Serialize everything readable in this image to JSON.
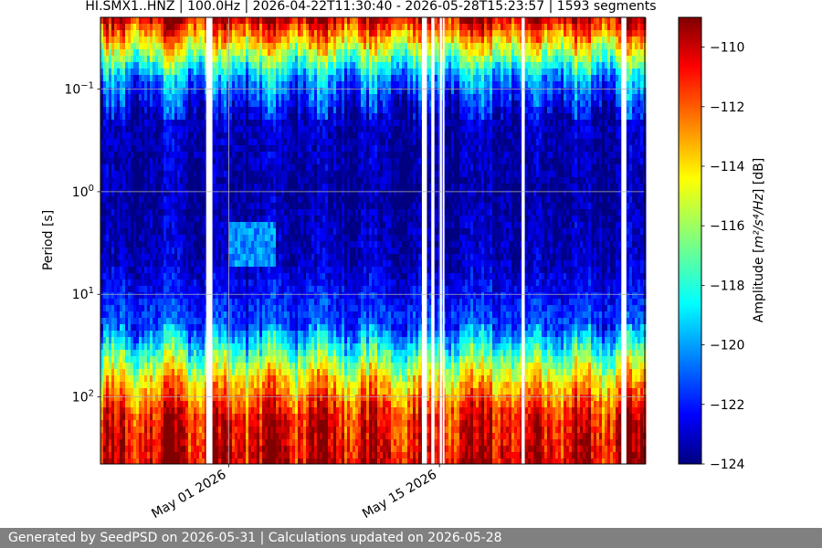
{
  "chart_data": {
    "type": "heatmap",
    "title": "HI.SMX1..HNZ | 100.0Hz | 2026-04-22T11:30:40 - 2026-05-28T15:23:57 | 1593 segments",
    "ylabel": "Period [s]",
    "y_scale": "log",
    "y_axis_inverted": true,
    "ylim": [
      0.02,
      450
    ],
    "x_range": [
      "2026-04-22T11:30:40",
      "2026-05-28T15:23:57"
    ],
    "x_ticks": [
      {
        "label": "May 01 2026",
        "date": "2026-05-01"
      },
      {
        "label": "May 15 2026",
        "date": "2026-05-15"
      }
    ],
    "y_ticks": [
      {
        "base": "10",
        "exp": "−1",
        "value": 0.1
      },
      {
        "base": "10",
        "exp": "0",
        "value": 1
      },
      {
        "base": "10",
        "exp": "1",
        "value": 10
      },
      {
        "base": "10",
        "exp": "2",
        "value": 100
      }
    ],
    "grid": true,
    "colormap": "jet",
    "colorbar": {
      "label_main": "Amplitude [",
      "label_math": "m²/s⁴/Hz",
      "label_unit": "] [dB]",
      "range": [
        -124,
        -109
      ],
      "ticks": [
        "−110",
        "−112",
        "−114",
        "−116",
        "−118",
        "−120",
        "−122",
        "−124"
      ],
      "tick_values": [
        -110,
        -112,
        -114,
        -116,
        -118,
        -120,
        -122,
        -124
      ]
    },
    "data_gaps": [
      {
        "start": "2026-04-29T12:00:00",
        "end": "2026-04-29T22:00:00"
      },
      {
        "start": "2026-05-13T20:00:00",
        "end": "2026-05-14T04:00:00"
      },
      {
        "start": "2026-05-14T11:00:00",
        "end": "2026-05-14T16:00:00"
      },
      {
        "start": "2026-05-15T01:00:00",
        "end": "2026-05-15T03:00:00"
      },
      {
        "start": "2026-05-15T05:00:00",
        "end": "2026-05-15T08:00:00"
      },
      {
        "start": "2026-05-20T11:00:00",
        "end": "2026-05-20T16:00:00"
      },
      {
        "start": "2026-05-27T02:00:00",
        "end": "2026-05-27T10:00:00"
      }
    ],
    "amplitude_profile": [
      {
        "period": 0.02,
        "db": -110
      },
      {
        "period": 0.04,
        "db": -115
      },
      {
        "period": 0.08,
        "db": -120
      },
      {
        "period": 0.2,
        "db": -123
      },
      {
        "period": 1,
        "db": -123.5
      },
      {
        "period": 5,
        "db": -123
      },
      {
        "period": 20,
        "db": -121
      },
      {
        "period": 40,
        "db": -117
      },
      {
        "period": 70,
        "db": -114
      },
      {
        "period": 150,
        "db": -111
      },
      {
        "period": 450,
        "db": -110
      }
    ],
    "highlights": [
      {
        "label_period": 3,
        "start": "2026-05-01T00:00:00",
        "end": "2026-05-04T00:00:00",
        "db": -120
      }
    ]
  },
  "footer": "Generated by SeedPSD on 2026-05-31 | Calculations updated on 2026-05-28"
}
